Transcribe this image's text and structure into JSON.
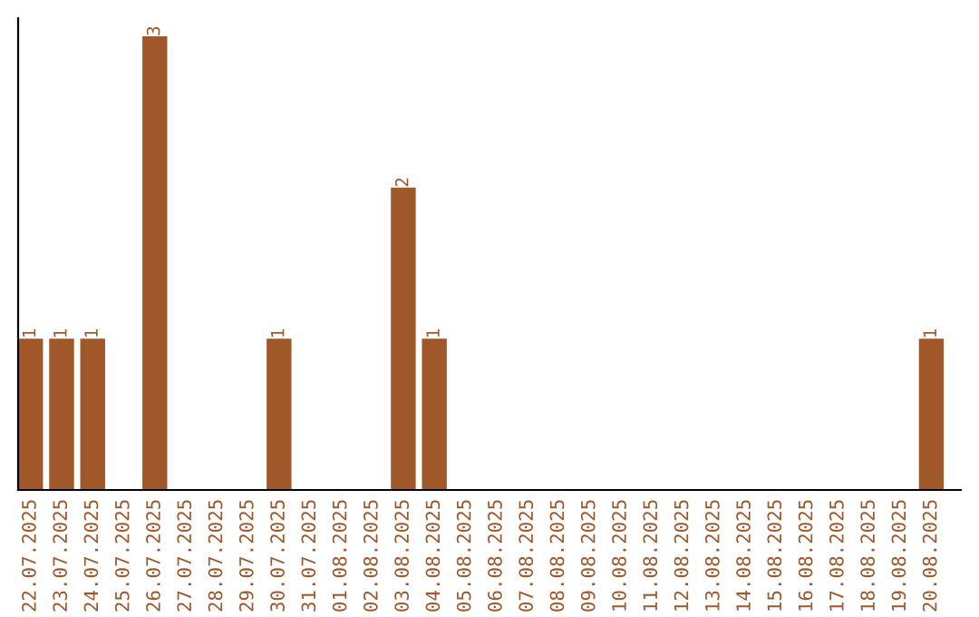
{
  "chart_data": {
    "type": "bar",
    "categories": [
      "22.07.2025",
      "23.07.2025",
      "24.07.2025",
      "25.07.2025",
      "26.07.2025",
      "27.07.2025",
      "28.07.2025",
      "29.07.2025",
      "30.07.2025",
      "31.07.2025",
      "01.08.2025",
      "02.08.2025",
      "03.08.2025",
      "04.08.2025",
      "05.08.2025",
      "06.08.2025",
      "07.08.2025",
      "08.08.2025",
      "09.08.2025",
      "10.08.2025",
      "11.08.2025",
      "12.08.2025",
      "13.08.2025",
      "14.08.2025",
      "15.08.2025",
      "16.08.2025",
      "17.08.2025",
      "18.08.2025",
      "19.08.2025",
      "20.08.2025"
    ],
    "values": [
      1,
      1,
      1,
      0,
      3,
      0,
      0,
      0,
      1,
      0,
      0,
      0,
      2,
      1,
      0,
      0,
      0,
      0,
      0,
      0,
      0,
      0,
      0,
      0,
      0,
      0,
      0,
      0,
      0,
      1
    ],
    "value_labels": [
      "1",
      "1",
      "1",
      null,
      "3",
      null,
      null,
      null,
      "1",
      null,
      null,
      null,
      "2",
      "1",
      null,
      null,
      null,
      null,
      null,
      null,
      null,
      null,
      null,
      null,
      null,
      null,
      null,
      null,
      null,
      "1"
    ],
    "color": "#a0572a",
    "tick_labels": "x",
    "grid": false
  }
}
